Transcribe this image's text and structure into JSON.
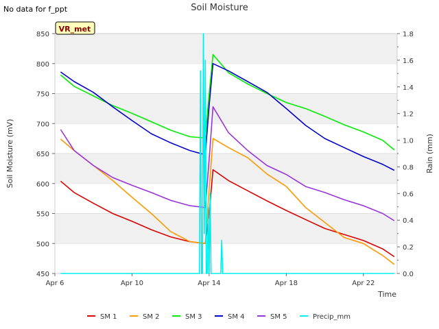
{
  "note": "No data for f_ppt",
  "chart_data": {
    "type": "line",
    "title": "Soil Moisture",
    "badge": "VR_met",
    "xlabel": "Time",
    "ylabel": "Soil Moisture (mV)",
    "y2label": "Rain (mm)",
    "xlim": [
      6,
      23.75
    ],
    "ylim": [
      450,
      850
    ],
    "y2lim": [
      0,
      1.8
    ],
    "xticks": [
      {
        "v": 6,
        "label": "Apr 6"
      },
      {
        "v": 10,
        "label": "Apr 10"
      },
      {
        "v": 14,
        "label": "Apr 14"
      },
      {
        "v": 18,
        "label": "Apr 18"
      },
      {
        "v": 22,
        "label": "Apr 22"
      }
    ],
    "yticks": [
      450,
      500,
      550,
      600,
      650,
      700,
      750,
      800,
      850
    ],
    "y2ticks": [
      "0.0",
      "0.2",
      "0.4",
      "0.6",
      "0.8",
      "1.0",
      "1.2",
      "1.4",
      "1.6",
      "1.8"
    ],
    "grid": "horizontal bands",
    "series": [
      {
        "name": "SM 1",
        "color": "#dd0000",
        "axis": "left",
        "x": [
          6.3,
          7,
          8,
          9,
          10,
          11,
          12,
          13,
          13.8,
          14.0,
          14.2,
          15,
          16,
          17,
          18,
          19,
          20,
          21,
          22,
          23,
          23.6
        ],
        "y": [
          604,
          585,
          567,
          550,
          537,
          523,
          511,
          503,
          500,
          550,
          623,
          605,
          588,
          571,
          555,
          540,
          525,
          515,
          505,
          491,
          478
        ]
      },
      {
        "name": "SM 2",
        "color": "#ff9900",
        "axis": "left",
        "x": [
          6.3,
          7,
          8,
          9,
          10,
          11,
          12,
          13,
          13.8,
          14.0,
          14.2,
          15,
          16,
          17,
          18,
          19,
          20,
          21,
          22,
          23,
          23.6
        ],
        "y": [
          674,
          655,
          630,
          605,
          577,
          550,
          520,
          503,
          500,
          590,
          675,
          660,
          643,
          616,
          595,
          560,
          535,
          510,
          500,
          480,
          465
        ]
      },
      {
        "name": "SM 3",
        "color": "#00ee00",
        "axis": "left",
        "x": [
          6.3,
          7,
          8,
          9,
          10,
          11,
          12,
          13,
          13.8,
          14.0,
          14.2,
          15,
          16,
          17,
          18,
          19,
          20,
          21,
          22,
          23,
          23.6
        ],
        "y": [
          781,
          762,
          746,
          730,
          717,
          703,
          689,
          678,
          676,
          750,
          815,
          785,
          766,
          750,
          735,
          725,
          712,
          698,
          686,
          672,
          656
        ]
      },
      {
        "name": "SM 4",
        "color": "#0000cc",
        "axis": "left",
        "x": [
          6.3,
          7,
          8,
          9,
          10,
          11,
          12,
          13,
          13.8,
          14.0,
          14.2,
          15,
          16,
          17,
          18,
          19,
          20,
          21,
          22,
          23,
          23.6
        ],
        "y": [
          786,
          770,
          752,
          728,
          705,
          683,
          668,
          655,
          648,
          730,
          800,
          788,
          770,
          752,
          725,
          697,
          675,
          660,
          645,
          632,
          622
        ]
      },
      {
        "name": "SM 5",
        "color": "#9933dd",
        "axis": "left",
        "x": [
          6.3,
          7,
          8,
          9,
          10,
          11,
          12,
          13,
          13.8,
          14.0,
          14.2,
          15,
          16,
          17,
          18,
          19,
          20,
          21,
          22,
          23,
          23.6
        ],
        "y": [
          690,
          655,
          630,
          610,
          597,
          585,
          572,
          563,
          560,
          640,
          728,
          685,
          655,
          630,
          615,
          595,
          585,
          573,
          563,
          550,
          538
        ]
      },
      {
        "name": "Precip_mm",
        "color": "#00eeee",
        "axis": "right",
        "x": [
          6.3,
          13.5,
          13.55,
          13.6,
          13.65,
          13.7,
          13.75,
          13.8,
          13.85,
          13.9,
          13.95,
          14.0,
          14.05,
          14.1,
          14.6,
          14.65,
          14.7,
          14.75,
          23.6
        ],
        "y": [
          0,
          0,
          1.52,
          0,
          0,
          1.8,
          0.3,
          1.6,
          0,
          0,
          0.5,
          0,
          0.6,
          0,
          0,
          0.25,
          0,
          0,
          0
        ]
      }
    ]
  }
}
